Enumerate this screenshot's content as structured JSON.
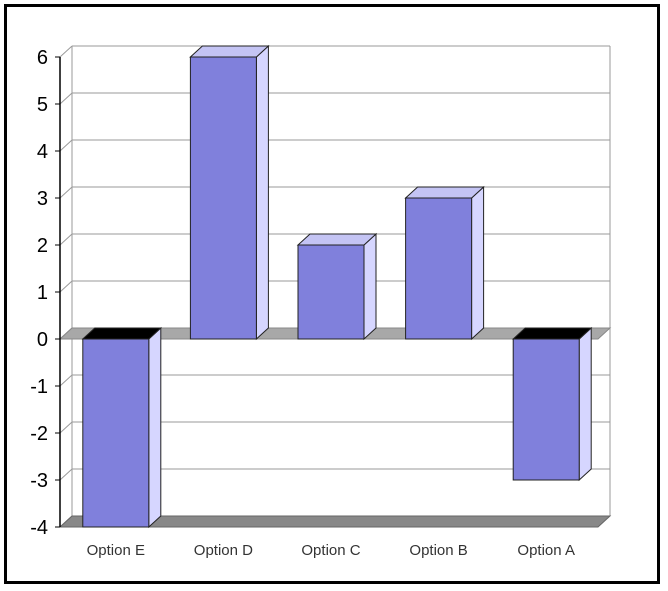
{
  "chart_data": {
    "type": "bar",
    "title": "",
    "xlabel": "",
    "ylabel": "",
    "categories": [
      "Option E",
      "Option D",
      "Option C",
      "Option B",
      "Option A"
    ],
    "values": [
      -4,
      6,
      2,
      3,
      -3
    ],
    "ylim": [
      -4,
      6
    ],
    "yticks": [
      "6",
      "5",
      "4",
      "3",
      "2",
      "1",
      "0",
      "-1",
      "-2",
      "-3",
      "-4"
    ],
    "grid": true,
    "legend": "none",
    "style": "3d-column",
    "colors": {
      "bar_front": "#8080dc",
      "bar_side": "#d6d6ff",
      "bar_top": "#c4c4f4",
      "bar_top_negative": "#000000",
      "floor": "#a8a8a8",
      "grid": "#9a9a9a"
    }
  }
}
